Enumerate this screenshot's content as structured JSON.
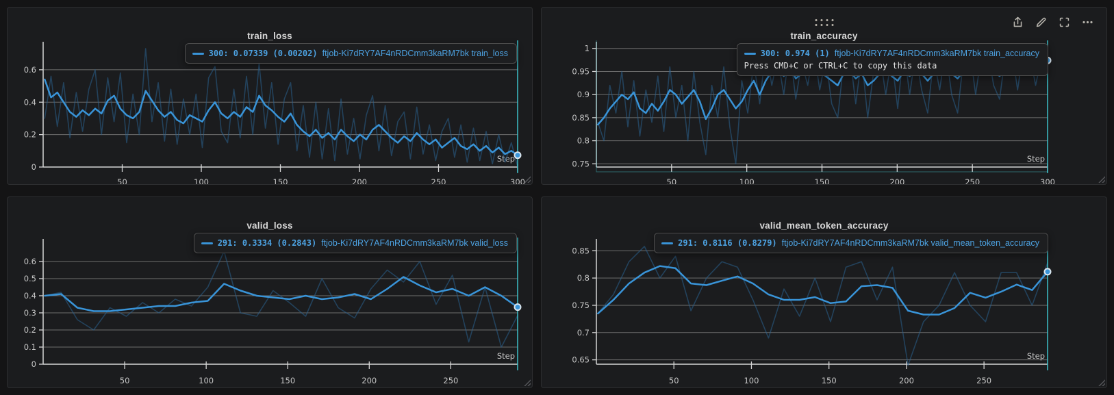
{
  "colors": {
    "accent_line": "#3994d8",
    "raw_line": "#2a638f",
    "grid": "#7e7e7e",
    "axis": "#d6d6d6",
    "tick_text": "#c7c7c7",
    "crosshair": "#3cc0c9",
    "marker_stroke": "#dbe6ee",
    "tooltip_text": "#4da3e3",
    "panel_bg": "#1b1c1e",
    "title_text": "#d8d8d8"
  },
  "toolbar": {
    "icons": [
      "share",
      "edit",
      "fullscreen",
      "more"
    ]
  },
  "chart_data": [
    {
      "type": "line",
      "title": "train_loss",
      "xlabel": "Step",
      "xlim": [
        0,
        300
      ],
      "xticks": [
        50,
        100,
        150,
        200,
        250,
        300
      ],
      "ylim": [
        0,
        0.76
      ],
      "yticks": [
        0,
        0.2,
        0.4,
        0.6
      ],
      "x_range_data": [
        1,
        300
      ],
      "series": [
        {
          "name": "raw",
          "values": [
            0.3,
            0.56,
            0.25,
            0.52,
            0.18,
            0.46,
            0.22,
            0.48,
            0.6,
            0.2,
            0.55,
            0.28,
            0.58,
            0.15,
            0.45,
            0.2,
            0.73,
            0.28,
            0.52,
            0.16,
            0.48,
            0.14,
            0.42,
            0.2,
            0.45,
            0.12,
            0.55,
            0.62,
            0.22,
            0.15,
            0.48,
            0.18,
            0.56,
            0.2,
            0.64,
            0.24,
            0.52,
            0.14,
            0.42,
            0.52,
            0.1,
            0.38,
            0.06,
            0.4,
            0.05,
            0.36,
            0.04,
            0.42,
            0.08,
            0.3,
            0.05,
            0.32,
            0.44,
            0.1,
            0.38,
            0.07,
            0.28,
            0.34,
            0.05,
            0.37,
            0.08,
            0.26,
            0.04,
            0.22,
            0.3,
            0.06,
            0.26,
            0.03,
            0.24,
            0.04,
            0.22,
            0.02,
            0.2,
            0.03,
            0.15,
            0.002
          ]
        },
        {
          "name": "smoothed",
          "values": [
            0.54,
            0.43,
            0.46,
            0.4,
            0.34,
            0.31,
            0.35,
            0.32,
            0.36,
            0.33,
            0.41,
            0.44,
            0.36,
            0.32,
            0.3,
            0.34,
            0.47,
            0.41,
            0.35,
            0.31,
            0.34,
            0.29,
            0.27,
            0.32,
            0.3,
            0.28,
            0.35,
            0.4,
            0.33,
            0.3,
            0.34,
            0.31,
            0.37,
            0.34,
            0.44,
            0.38,
            0.35,
            0.31,
            0.28,
            0.33,
            0.26,
            0.22,
            0.19,
            0.23,
            0.18,
            0.21,
            0.17,
            0.23,
            0.19,
            0.16,
            0.2,
            0.17,
            0.23,
            0.26,
            0.22,
            0.18,
            0.15,
            0.19,
            0.16,
            0.21,
            0.17,
            0.14,
            0.17,
            0.12,
            0.15,
            0.18,
            0.13,
            0.11,
            0.14,
            0.1,
            0.13,
            0.09,
            0.12,
            0.08,
            0.1,
            0.073
          ]
        }
      ],
      "tooltip": {
        "value_text": "300: 0.07339 (0.00202)",
        "series_label": "ftjob-Ki7dRY7AF4nRDCmm3kaRM7bk train_loss"
      }
    },
    {
      "type": "line",
      "title": "train_accuracy",
      "xlabel": "Step",
      "xlim": [
        0,
        300
      ],
      "xticks": [
        50,
        100,
        150,
        200,
        250,
        300
      ],
      "ylim": [
        0.743,
        1.01
      ],
      "yticks": [
        0.75,
        0.8,
        0.85,
        0.9,
        0.95,
        1
      ],
      "x_range_data": [
        1,
        300
      ],
      "series": [
        {
          "name": "raw",
          "values": [
            0.84,
            0.8,
            0.92,
            0.86,
            0.95,
            0.83,
            0.93,
            0.81,
            0.91,
            0.84,
            0.94,
            0.82,
            0.96,
            0.85,
            0.92,
            0.8,
            0.95,
            0.84,
            0.77,
            0.92,
            0.85,
            0.96,
            0.83,
            0.75,
            0.93,
            0.86,
            0.97,
            0.88,
            1.0,
            0.92,
            0.98,
            0.9,
            1.0,
            0.89,
            0.97,
            0.92,
            1.0,
            0.91,
            0.98,
            0.88,
            0.85,
            0.97,
            0.99,
            0.88,
            0.98,
            0.85,
            0.95,
            0.99,
            0.9,
            0.98,
            0.87,
            1.0,
            0.9,
            0.99,
            0.91,
            0.86,
            0.98,
            0.91,
            1.0,
            0.9,
            0.86,
            0.98,
            1.0,
            0.9,
            0.99,
            1.0,
            0.92,
            0.89,
            0.99,
            1.0,
            0.91,
            1.0,
            0.99,
            0.92,
            0.98,
            1.0
          ]
        },
        {
          "name": "smoothed",
          "values": [
            0.835,
            0.85,
            0.87,
            0.885,
            0.9,
            0.89,
            0.905,
            0.87,
            0.86,
            0.88,
            0.865,
            0.885,
            0.91,
            0.9,
            0.88,
            0.895,
            0.91,
            0.885,
            0.847,
            0.87,
            0.9,
            0.91,
            0.89,
            0.87,
            0.885,
            0.91,
            0.93,
            0.9,
            0.93,
            0.95,
            0.955,
            0.94,
            0.96,
            0.935,
            0.945,
            0.955,
            0.965,
            0.95,
            0.94,
            0.93,
            0.92,
            0.945,
            0.95,
            0.935,
            0.945,
            0.92,
            0.93,
            0.945,
            0.955,
            0.94,
            0.93,
            0.95,
            0.94,
            0.955,
            0.945,
            0.93,
            0.945,
            0.95,
            0.96,
            0.945,
            0.935,
            0.95,
            0.955,
            0.945,
            0.955,
            0.96,
            0.95,
            0.94,
            0.955,
            0.96,
            0.95,
            0.96,
            0.965,
            0.955,
            0.96,
            0.974
          ]
        }
      ],
      "tooltip": {
        "value_text": "300: 0.974 (1)",
        "series_label": "ftjob-Ki7dRY7AF4nRDCmm3kaRM7bk train_accuracy",
        "copy_hint": "Press CMD+C or CTRL+C to copy this data"
      }
    },
    {
      "type": "line",
      "title": "valid_loss",
      "xlabel": "Step",
      "xlim": [
        0,
        291
      ],
      "xticks": [
        50,
        100,
        150,
        200,
        250
      ],
      "ylim": [
        0,
        0.72
      ],
      "yticks": [
        0,
        0.1,
        0.2,
        0.3,
        0.4,
        0.5,
        0.6
      ],
      "x_range_data": [
        1,
        291
      ],
      "series": [
        {
          "name": "raw",
          "values": [
            0.4,
            0.42,
            0.26,
            0.2,
            0.33,
            0.28,
            0.36,
            0.3,
            0.38,
            0.34,
            0.45,
            0.66,
            0.3,
            0.28,
            0.43,
            0.36,
            0.28,
            0.5,
            0.33,
            0.27,
            0.44,
            0.55,
            0.48,
            0.6,
            0.35,
            0.52,
            0.13,
            0.45,
            0.1,
            0.2843
          ]
        },
        {
          "name": "smoothed",
          "values": [
            0.4,
            0.41,
            0.33,
            0.31,
            0.31,
            0.32,
            0.33,
            0.34,
            0.34,
            0.36,
            0.37,
            0.47,
            0.43,
            0.4,
            0.39,
            0.38,
            0.4,
            0.38,
            0.39,
            0.41,
            0.38,
            0.44,
            0.51,
            0.46,
            0.42,
            0.44,
            0.4,
            0.45,
            0.4,
            0.3334
          ]
        }
      ],
      "tooltip": {
        "value_text": "291: 0.3334 (0.2843)",
        "series_label": "ftjob-Ki7dRY7AF4nRDCmm3kaRM7bk valid_loss"
      }
    },
    {
      "type": "line",
      "title": "valid_mean_token_accuracy",
      "xlabel": "Step",
      "xlim": [
        0,
        291
      ],
      "xticks": [
        50,
        100,
        150,
        200,
        250
      ],
      "ylim": [
        0.642,
        0.868
      ],
      "yticks": [
        0.65,
        0.7,
        0.75,
        0.8,
        0.85
      ],
      "x_range_data": [
        1,
        291
      ],
      "series": [
        {
          "name": "raw",
          "values": [
            0.735,
            0.77,
            0.83,
            0.858,
            0.8,
            0.84,
            0.74,
            0.8,
            0.83,
            0.82,
            0.76,
            0.69,
            0.78,
            0.73,
            0.8,
            0.72,
            0.82,
            0.83,
            0.76,
            0.82,
            0.64,
            0.72,
            0.75,
            0.81,
            0.75,
            0.72,
            0.81,
            0.81,
            0.75,
            0.8279
          ]
        },
        {
          "name": "smoothed",
          "values": [
            0.735,
            0.76,
            0.79,
            0.81,
            0.822,
            0.818,
            0.79,
            0.787,
            0.795,
            0.803,
            0.79,
            0.77,
            0.76,
            0.76,
            0.765,
            0.754,
            0.757,
            0.785,
            0.787,
            0.782,
            0.74,
            0.733,
            0.733,
            0.745,
            0.773,
            0.764,
            0.775,
            0.788,
            0.778,
            0.8116
          ]
        }
      ],
      "tooltip": {
        "value_text": "291: 0.8116 (0.8279)",
        "series_label": "ftjob-Ki7dRY7AF4nRDCmm3kaRM7bk valid_mean_token_accuracy"
      }
    }
  ]
}
